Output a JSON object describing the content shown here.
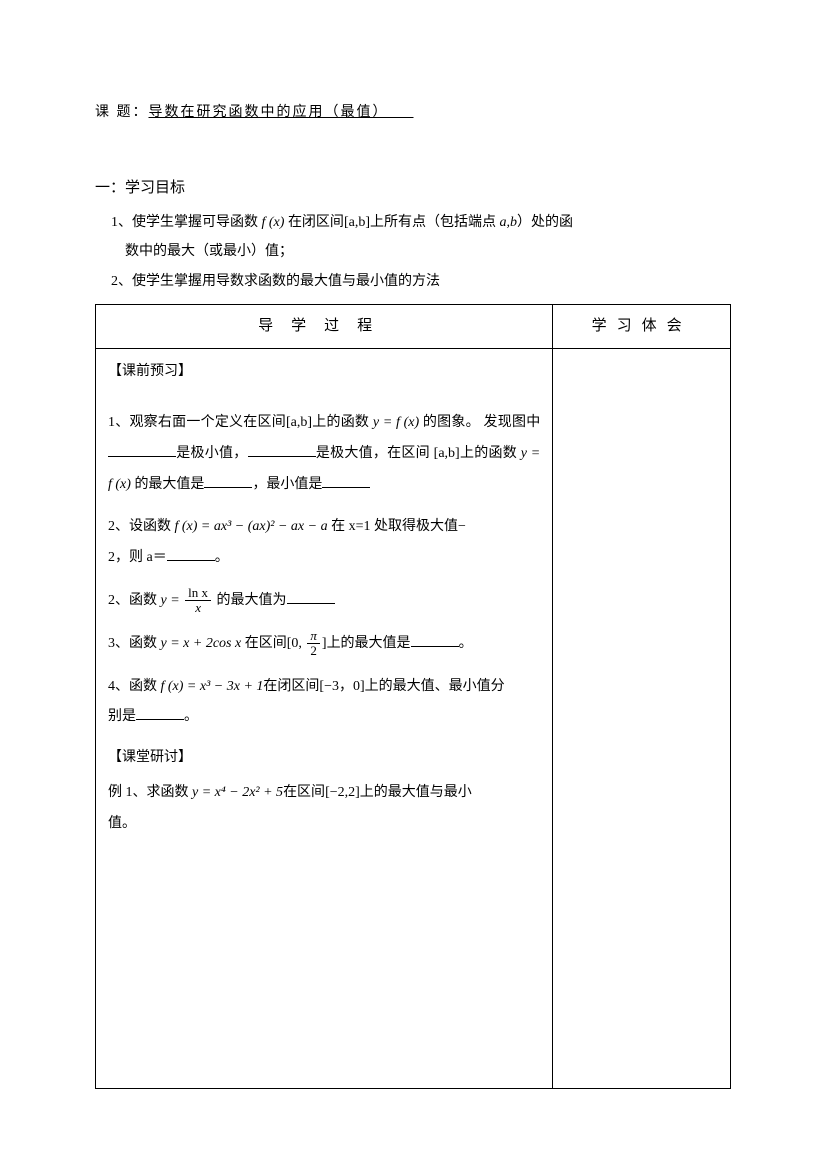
{
  "header": {
    "label": "课    题：",
    "title": "导数在研究函数中的应用（最值）"
  },
  "section1": {
    "title": "一：学习目标",
    "obj1_line1": "1、使学生掌握可导函数 ",
    "obj1_fx": "f (x)",
    "obj1_line1b": " 在闭区间",
    "obj1_interval": "[a,b]",
    "obj1_line1c": "上所有点（包括端点 ",
    "obj1_ab": "a,b",
    "obj1_line1d": "）处的函",
    "obj1_line2": "数中的最大（或最小）值；",
    "obj2": "2、使学生掌握用导数求函数的最大值与最小值的方法"
  },
  "table": {
    "header_left": "导学过程",
    "header_right": "学习体会",
    "preclass_title": "【课前预习】",
    "q1_a": "1、观察右面一个定义在区间",
    "q1_interval": "[a,b]",
    "q1_b": "上的函数 ",
    "q1_fx": "y = f (x)",
    "q1_c": " 的图象。",
    "q1_d": "发现图中",
    "q1_e": "是极小值，",
    "q1_f": "是极大值，在区间",
    "q1_interval2": "[a,b]",
    "q1_g": "上的函数 ",
    "q1_fx2": "y = f (x)",
    "q1_h": " 的最大值是",
    "q1_i": "，最小值是",
    "q2a_a": "2、设函数 ",
    "q2a_fx": "f (x) = ax³ − (ax)² − ax − a",
    "q2a_b": "在 x=1 处取得极大值−",
    "q2a_c": "2，则 a＝",
    "q2a_d": "。",
    "q2b_a": "2、函数 ",
    "q2b_y": "y = ",
    "q2b_num": "ln x",
    "q2b_den": "x",
    "q2b_b": " 的最大值为",
    "q3_a": "3、函数 ",
    "q3_y": "y = x + 2cos x",
    "q3_b": " 在区间",
    "q3_interval_a": "[0, ",
    "q3_num": "π",
    "q3_den": "2",
    "q3_interval_b": "]",
    "q3_c": "上的最大值是",
    "q3_d": "。",
    "q4_a": "4、函数 ",
    "q4_fx": "f (x) = x³ − 3x + 1",
    "q4_b": "在闭区间[−3，0]上的最大值、最小值分",
    "q4_c": "别是",
    "q4_d": "。",
    "inclass_title": "【课堂研讨】",
    "ex1_a": "例 1、求函数 ",
    "ex1_y": "y = x⁴ − 2x² + 5",
    "ex1_b": "在区间",
    "ex1_interval": "[−2,2]",
    "ex1_c": "上的最大值与最小",
    "ex1_d": "值。"
  },
  "colors": {
    "text": "#000000",
    "background": "#ffffff",
    "border": "#000000"
  }
}
